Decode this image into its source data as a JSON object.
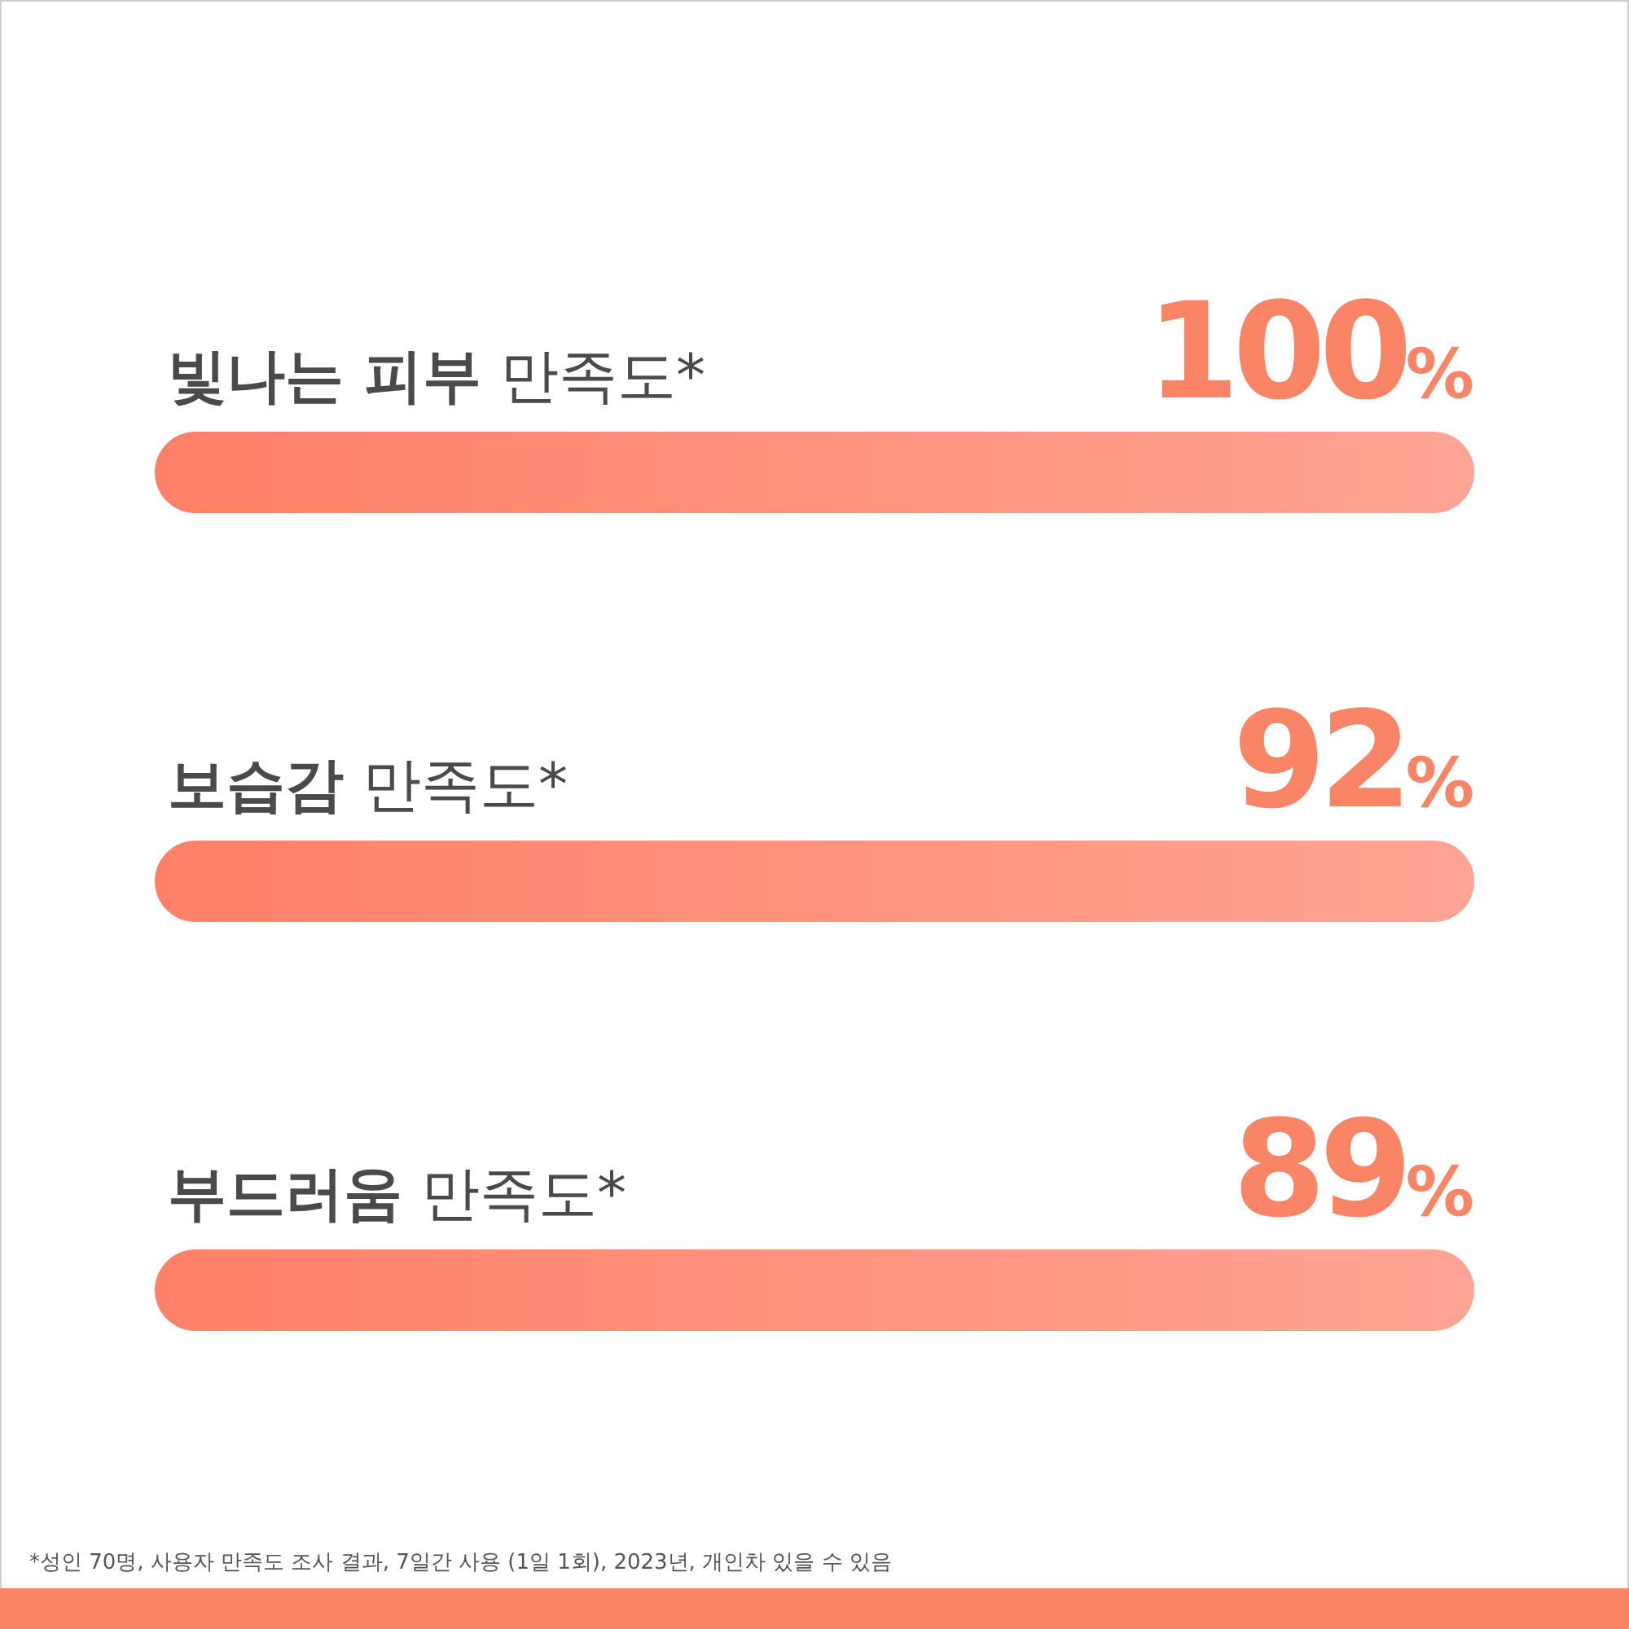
{
  "chart_data": {
    "type": "other",
    "categories": [
      "**빛나는 피부** 만족도*",
      "**보습감** 만족도*",
      "**부드러움** 만족도*"
    ],
    "values": [
      100,
      92,
      89
    ],
    "value_labels": [
      "100%",
      "92%",
      "89%"
    ],
    "color": "#fa8466",
    "annotations": [
      "*성인 70명, 사용자 만족도 조사 결과, 7일간 사용 (1일 1회), 2023년, 개인차 있을 수 있음"
    ]
  }
}
